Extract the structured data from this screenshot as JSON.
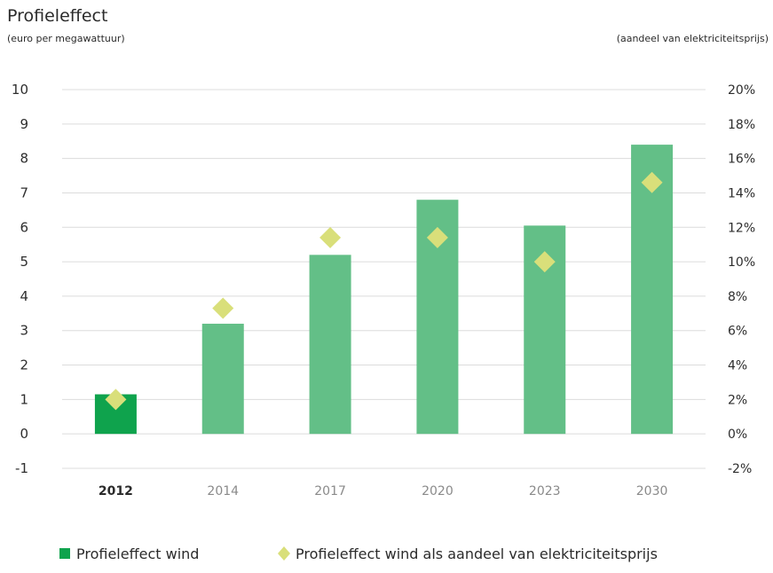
{
  "chart_data": {
    "type": "bar",
    "title": "Profieleffect",
    "ylabel_left": "(euro per megawattuur)",
    "ylabel_right": "(aandeel van elektriciteitsprijs)",
    "categories": [
      "2012",
      "2014",
      "2017",
      "2020",
      "2023",
      "2030"
    ],
    "series": [
      {
        "name": "Profieleffect wind",
        "type": "bar",
        "axis": "left",
        "values": [
          1.15,
          3.2,
          5.2,
          6.8,
          6.05,
          8.4
        ],
        "color": "#63bf87",
        "highlight_color": "#0fa34d",
        "highlight_index": 0
      },
      {
        "name": "Profieleffect wind als aandeel van elektriciteitsprijs",
        "type": "scatter",
        "marker": "diamond",
        "axis": "right",
        "values": [
          2.0,
          7.3,
          11.4,
          11.4,
          10.0,
          14.6
        ],
        "color": "#d9df7a"
      }
    ],
    "yleft": {
      "ylim": [
        -1,
        10
      ],
      "ticks": [
        "-1",
        "0",
        "1",
        "2",
        "3",
        "4",
        "5",
        "6",
        "7",
        "8",
        "9",
        "10"
      ]
    },
    "yright": {
      "ylim": [
        -2,
        20
      ],
      "ticks": [
        "-2%",
        "0%",
        "2%",
        "4%",
        "6%",
        "8%",
        "10%",
        "12%",
        "14%",
        "16%",
        "18%",
        "20%"
      ]
    },
    "grid": true,
    "legend": "bottom"
  }
}
